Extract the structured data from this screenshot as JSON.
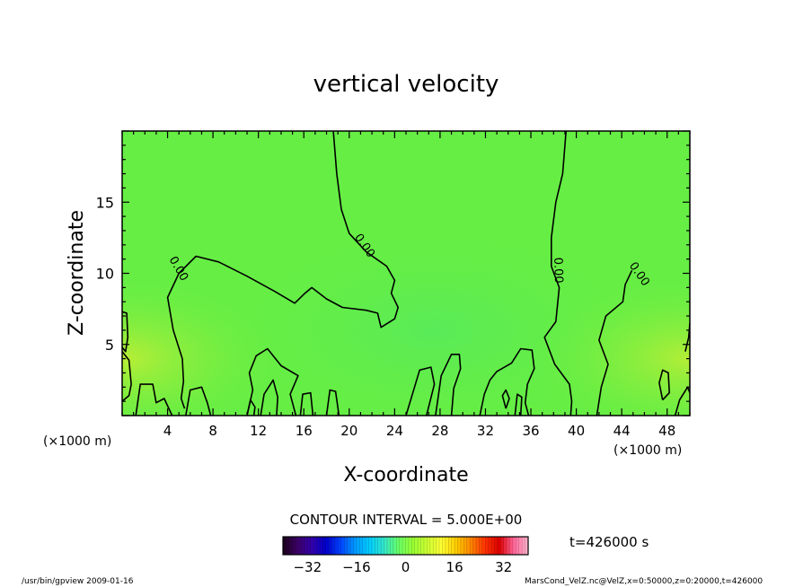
{
  "chart_data": {
    "type": "heatmap",
    "title": "vertical velocity",
    "xlabel": "X-coordinate",
    "ylabel": "Z-coordinate",
    "x_unit_left": "(×1000 m)",
    "x_unit_right": "(×1000 m)",
    "xlim": [
      0,
      50
    ],
    "ylim": [
      0,
      20
    ],
    "x_ticks": [
      4,
      8,
      12,
      16,
      20,
      24,
      28,
      32,
      36,
      40,
      44,
      48
    ],
    "y_ticks": [
      5,
      10,
      15
    ],
    "contour_interval_text": "CONTOUR INTERVAL = 5.000E+00",
    "contour_labels": [
      "0.00",
      "0.00",
      "0.00",
      "0.00"
    ],
    "colorbar": {
      "min": -40,
      "max": 40,
      "ticks": [
        -32,
        -16,
        0,
        16,
        32
      ],
      "colors": [
        "#1a001a",
        "#3b0066",
        "#3300aa",
        "#0000cc",
        "#0044ff",
        "#0099ff",
        "#00ccff",
        "#33e6cc",
        "#66ff66",
        "#99ff33",
        "#ccff33",
        "#ffff33",
        "#ffcc00",
        "#ff8800",
        "#ff3300",
        "#dd0000",
        "#ff6699",
        "#ffb3cc"
      ]
    },
    "field_color": "#66ee44",
    "time_label": "t=426000 s",
    "footer_left": "/usr/bin/gpview  2009-01-16",
    "footer_right": "MarsCond_VelZ.nc@VelZ,x=0:50000,z=0:20000,t=426000",
    "contours": [
      [
        [
          18.6,
          20
        ],
        [
          18.9,
          17
        ],
        [
          19.3,
          14.5
        ],
        [
          20,
          12.8
        ],
        [
          21.5,
          11.5
        ],
        [
          23.3,
          10.5
        ],
        [
          24,
          9.5
        ],
        [
          23.7,
          8.6
        ],
        [
          24.3,
          7.6
        ],
        [
          24,
          6.8
        ],
        [
          22.8,
          6.2
        ],
        [
          22.5,
          7.2
        ],
        [
          21.5,
          7.4
        ],
        [
          19.4,
          7.6
        ],
        [
          18,
          8.2
        ],
        [
          16.7,
          9
        ],
        [
          16.1,
          8.6
        ],
        [
          15.2,
          7.9
        ],
        [
          13.5,
          8.7
        ],
        [
          11,
          9.8
        ],
        [
          8.5,
          10.8
        ],
        [
          6.5,
          11.2
        ],
        [
          5,
          10
        ],
        [
          4,
          8.3
        ],
        [
          4.5,
          6
        ],
        [
          5.3,
          4
        ],
        [
          5.4,
          2.4
        ],
        [
          5.2,
          1.2
        ],
        [
          5.5,
          0.5
        ]
      ],
      [
        [
          39.1,
          20
        ],
        [
          38.8,
          17
        ],
        [
          38.2,
          15
        ],
        [
          37.8,
          12.5
        ],
        [
          37.8,
          10.5
        ],
        [
          38.5,
          9
        ],
        [
          38.2,
          6.6
        ],
        [
          37.2,
          5.5
        ],
        [
          38.1,
          3.6
        ],
        [
          39.4,
          2.2
        ],
        [
          39.6,
          1
        ],
        [
          39.5,
          0
        ]
      ],
      [
        [
          44.9,
          10.2
        ],
        [
          44.3,
          9.2
        ],
        [
          44.1,
          8
        ],
        [
          42.6,
          7
        ],
        [
          42,
          5.3
        ],
        [
          42.8,
          3.6
        ],
        [
          42.2,
          2
        ],
        [
          41.8,
          0
        ]
      ],
      [
        [
          11,
          0
        ],
        [
          11.3,
          1.1
        ],
        [
          11.7,
          0.6
        ],
        [
          11.6,
          0
        ]
      ],
      [
        [
          1.2,
          0
        ],
        [
          1.6,
          2.2
        ],
        [
          2.7,
          2.2
        ],
        [
          3,
          0.9
        ],
        [
          3.7,
          1.2
        ],
        [
          4.4,
          0
        ]
      ],
      [
        [
          5.6,
          0
        ],
        [
          6,
          1.8
        ],
        [
          7,
          2
        ],
        [
          7.5,
          0.9
        ],
        [
          7.8,
          0
        ]
      ],
      [
        [
          11,
          0
        ],
        [
          11.5,
          1.8
        ],
        [
          11.2,
          3
        ],
        [
          11.8,
          4.2
        ],
        [
          12.8,
          4.7
        ],
        [
          14,
          3.5
        ],
        [
          15.5,
          2.8
        ],
        [
          14.8,
          1.5
        ],
        [
          15.3,
          0
        ]
      ],
      [
        [
          12.2,
          0
        ],
        [
          12.5,
          1.5
        ],
        [
          13.3,
          2.5
        ],
        [
          13.7,
          1.3
        ],
        [
          13.6,
          0
        ]
      ],
      [
        [
          15.7,
          0
        ],
        [
          15.9,
          1.5
        ],
        [
          16.6,
          1.6
        ],
        [
          16.8,
          0
        ]
      ],
      [
        [
          18,
          0
        ],
        [
          18.3,
          1.8
        ],
        [
          18.8,
          1.7
        ],
        [
          19.1,
          0
        ]
      ],
      [
        [
          25,
          0
        ],
        [
          26.2,
          3.2
        ],
        [
          27.2,
          3.4
        ],
        [
          27.5,
          2.2
        ],
        [
          26.8,
          0
        ]
      ],
      [
        [
          27.6,
          0
        ],
        [
          28.1,
          2.8
        ],
        [
          29,
          4.3
        ],
        [
          29.7,
          4.3
        ],
        [
          29.8,
          3.3
        ],
        [
          29.2,
          1.9
        ],
        [
          29,
          0
        ]
      ],
      [
        [
          31.5,
          0
        ],
        [
          31.9,
          1.5
        ],
        [
          32.4,
          2.5
        ],
        [
          33,
          3.1
        ],
        [
          34.3,
          3.7
        ],
        [
          35.1,
          4.7
        ],
        [
          36.1,
          4.6
        ],
        [
          36.3,
          3.3
        ],
        [
          35.7,
          2.2
        ],
        [
          35.5,
          0.9
        ],
        [
          35.8,
          0
        ]
      ],
      [
        [
          33.8,
          0.5
        ],
        [
          33.5,
          1.4
        ],
        [
          33.8,
          1.8
        ],
        [
          34.1,
          1.2
        ],
        [
          33.8,
          0.5
        ]
      ],
      [
        [
          34.6,
          0
        ],
        [
          34.8,
          1.5
        ],
        [
          35.2,
          1.3
        ],
        [
          35.1,
          0
        ]
      ],
      [
        [
          48.7,
          0
        ],
        [
          49.1,
          1.1
        ],
        [
          49.8,
          2
        ],
        [
          50,
          1.6
        ]
      ],
      [
        [
          0,
          4.5
        ],
        [
          0.6,
          3.9
        ],
        [
          0.8,
          2.2
        ],
        [
          0.6,
          1.4
        ],
        [
          0,
          1
        ]
      ],
      [
        [
          47.6,
          1.1
        ],
        [
          47.3,
          2.3
        ],
        [
          47.6,
          3.2
        ],
        [
          48.1,
          3
        ],
        [
          48.2,
          1.6
        ],
        [
          47.6,
          1.1
        ]
      ],
      [
        [
          49.6,
          4.5
        ],
        [
          49.9,
          5.5
        ],
        [
          50,
          6.5
        ]
      ],
      [
        [
          0,
          7.3
        ],
        [
          0.4,
          7.2
        ],
        [
          0.5,
          5.5
        ],
        [
          0.3,
          4.5
        ],
        [
          0,
          4.8
        ]
      ]
    ]
  }
}
